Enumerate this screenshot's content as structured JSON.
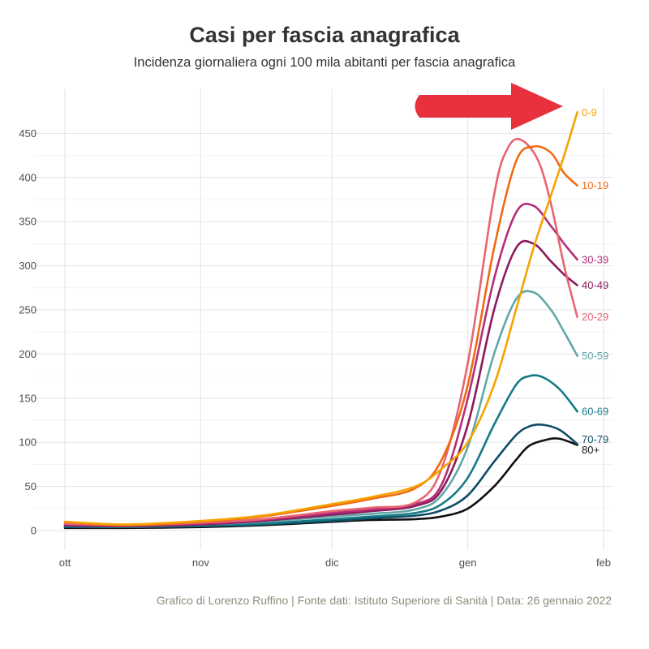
{
  "chart_data": {
    "type": "line",
    "title": "Casi per fascia anagrafica",
    "subtitle": "Incidenza giornaliera ogni 100 mila abitanti per fascia anagrafica",
    "caption": "Grafico di Lorenzo Ruffino | Fonte dati: Istituto Superiore di Sanità | Data: 26 gennaio 2022",
    "xlabel": "",
    "ylabel": "",
    "x_ticks": [
      "ott",
      "nov",
      "dic",
      "gen",
      "feb"
    ],
    "x_tick_dates": [
      "2021-10-01",
      "2021-11-01",
      "2021-12-01",
      "2022-01-01",
      "2022-02-01"
    ],
    "xlim": [
      "2021-10-01",
      "2022-02-01"
    ],
    "y_ticks": [
      0,
      50,
      100,
      150,
      200,
      250,
      300,
      350,
      400,
      450
    ],
    "ylim": [
      -22,
      500
    ],
    "grid": true,
    "legend": "none (labels at line ends)",
    "annotation": "red arrow pointing to 0-9",
    "series": [
      {
        "name": "80+",
        "color": "#111111",
        "x": [
          "2021-10-01",
          "2021-10-15",
          "2021-11-01",
          "2021-11-15",
          "2021-12-01",
          "2021-12-10",
          "2021-12-20",
          "2021-12-26",
          "2022-01-01",
          "2022-01-07",
          "2022-01-12",
          "2022-01-15",
          "2022-01-19",
          "2022-01-22",
          "2022-01-26"
        ],
        "y": [
          3,
          3,
          4,
          6,
          10,
          12,
          13,
          16,
          25,
          50,
          80,
          96,
          103,
          104,
          97
        ]
      },
      {
        "name": "70-79",
        "color": "#0e4d64",
        "x": [
          "2021-10-01",
          "2021-10-15",
          "2021-11-01",
          "2021-11-15",
          "2021-12-01",
          "2021-12-10",
          "2021-12-20",
          "2021-12-26",
          "2022-01-01",
          "2022-01-07",
          "2022-01-12",
          "2022-01-15",
          "2022-01-18",
          "2022-01-22",
          "2022-01-26"
        ],
        "y": [
          4,
          4,
          5,
          7,
          11,
          14,
          17,
          23,
          40,
          78,
          108,
          118,
          120,
          114,
          98
        ]
      },
      {
        "name": "60-69",
        "color": "#157a85",
        "x": [
          "2021-10-01",
          "2021-10-15",
          "2021-11-01",
          "2021-11-15",
          "2021-12-01",
          "2021-12-10",
          "2021-12-20",
          "2021-12-26",
          "2022-01-01",
          "2022-01-07",
          "2022-01-12",
          "2022-01-15",
          "2022-01-18",
          "2022-01-22",
          "2022-01-26"
        ],
        "y": [
          5,
          4,
          6,
          8,
          13,
          16,
          20,
          30,
          60,
          120,
          165,
          175,
          174,
          160,
          135
        ]
      },
      {
        "name": "50-59",
        "color": "#62a7a8",
        "x": [
          "2021-10-01",
          "2021-10-15",
          "2021-11-01",
          "2021-11-15",
          "2021-12-01",
          "2021-12-10",
          "2021-12-20",
          "2021-12-26",
          "2022-01-01",
          "2022-01-07",
          "2022-01-12",
          "2022-01-16",
          "2022-01-20",
          "2022-01-23",
          "2022-01-26"
        ],
        "y": [
          6,
          5,
          7,
          10,
          16,
          19,
          24,
          40,
          95,
          200,
          262,
          270,
          250,
          225,
          198
        ]
      },
      {
        "name": "40-49",
        "color": "#8b1b5c",
        "x": [
          "2021-10-01",
          "2021-10-15",
          "2021-11-01",
          "2021-11-15",
          "2021-12-01",
          "2021-12-10",
          "2021-12-20",
          "2021-12-26",
          "2022-01-01",
          "2022-01-07",
          "2022-01-12",
          "2022-01-16",
          "2022-01-20",
          "2022-01-23",
          "2022-01-26"
        ],
        "y": [
          6,
          5,
          7,
          11,
          18,
          22,
          28,
          46,
          120,
          250,
          320,
          325,
          305,
          290,
          278
        ]
      },
      {
        "name": "30-39",
        "color": "#b52e7a",
        "x": [
          "2021-10-01",
          "2021-10-15",
          "2021-11-01",
          "2021-11-15",
          "2021-12-01",
          "2021-12-10",
          "2021-12-20",
          "2021-12-26",
          "2022-01-01",
          "2022-01-07",
          "2022-01-12",
          "2022-01-16",
          "2022-01-20",
          "2022-01-23",
          "2022-01-26"
        ],
        "y": [
          7,
          6,
          8,
          12,
          20,
          24,
          30,
          52,
          150,
          285,
          360,
          368,
          345,
          325,
          307
        ]
      },
      {
        "name": "20-29",
        "color": "#e86470",
        "x": [
          "2021-10-01",
          "2021-10-15",
          "2021-11-01",
          "2021-11-15",
          "2021-12-01",
          "2021-12-10",
          "2021-12-20",
          "2021-12-26",
          "2022-01-01",
          "2022-01-07",
          "2022-01-10",
          "2022-01-13",
          "2022-01-17",
          "2022-01-20",
          "2022-01-23",
          "2022-01-26"
        ],
        "y": [
          8,
          6,
          9,
          13,
          22,
          26,
          32,
          70,
          190,
          380,
          432,
          443,
          420,
          370,
          300,
          242
        ]
      },
      {
        "name": "10-19",
        "color": "#ef6a10",
        "x": [
          "2021-10-01",
          "2021-10-15",
          "2021-11-01",
          "2021-11-15",
          "2021-12-01",
          "2021-12-10",
          "2021-12-20",
          "2021-12-26",
          "2022-01-01",
          "2022-01-07",
          "2022-01-12",
          "2022-01-16",
          "2022-01-20",
          "2022-01-23",
          "2022-01-26"
        ],
        "y": [
          10,
          6,
          10,
          16,
          28,
          36,
          48,
          80,
          165,
          320,
          418,
          435,
          428,
          405,
          391
        ]
      },
      {
        "name": "0-9",
        "color": "#f5a300",
        "x": [
          "2021-10-01",
          "2021-10-15",
          "2021-11-01",
          "2021-11-15",
          "2021-12-01",
          "2021-12-10",
          "2021-12-20",
          "2021-12-26",
          "2022-01-01",
          "2022-01-07",
          "2022-01-12",
          "2022-01-16",
          "2022-01-20",
          "2022-01-23",
          "2022-01-26"
        ],
        "y": [
          10,
          7,
          11,
          17,
          30,
          38,
          50,
          70,
          100,
          165,
          250,
          320,
          380,
          425,
          474
        ]
      }
    ]
  }
}
